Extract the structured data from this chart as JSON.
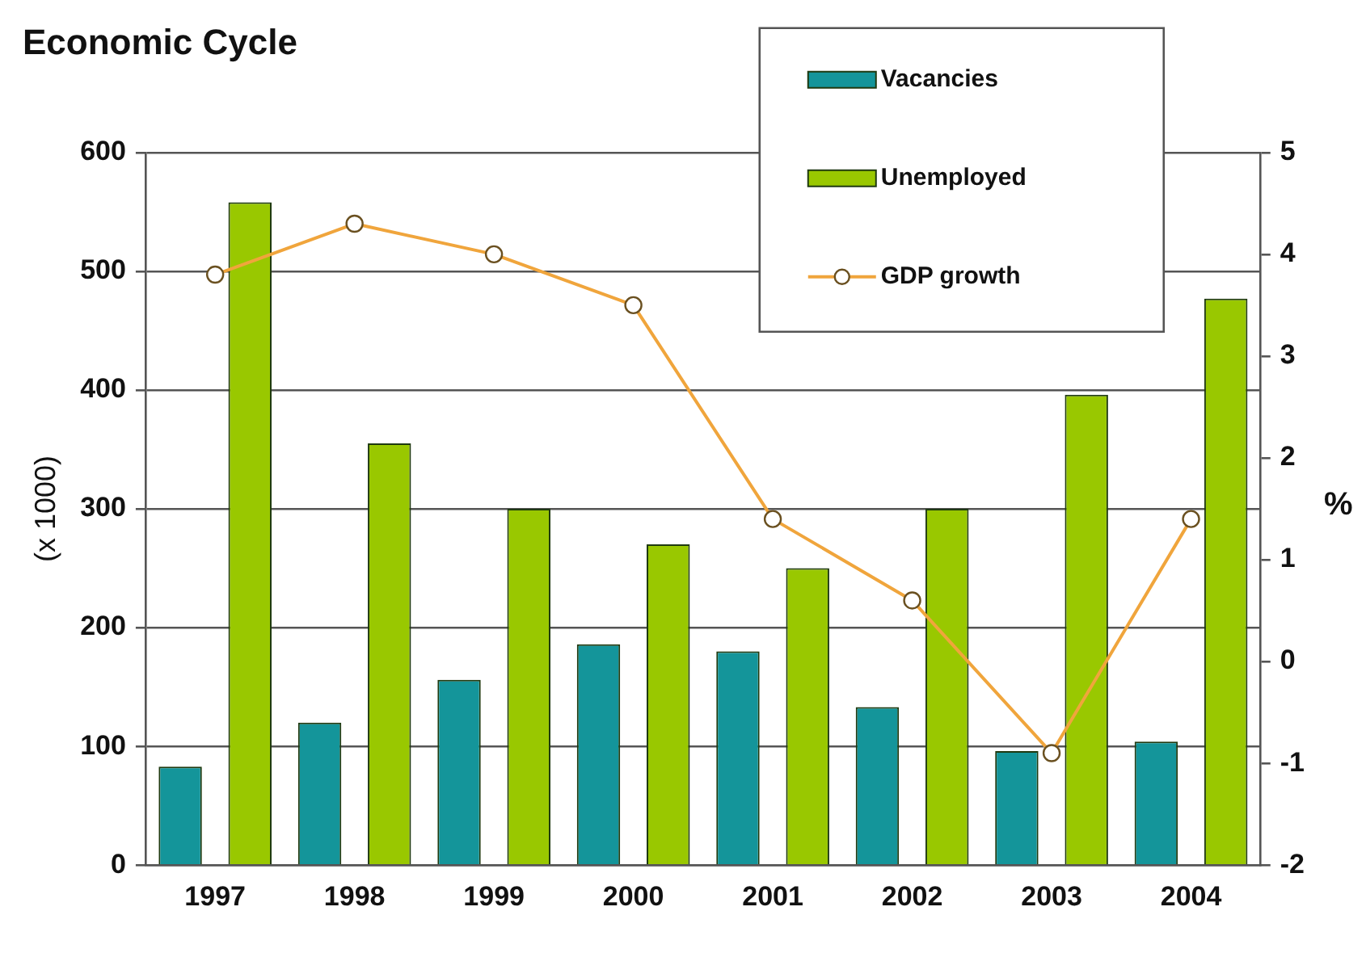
{
  "chart_data": {
    "type": "bar",
    "title": "Economic Cycle",
    "ylabel": "(x 1000)",
    "y2label": "%",
    "categories": [
      "1997",
      "1998",
      "1999",
      "2000",
      "2001",
      "2002",
      "2003",
      "2004"
    ],
    "series": [
      {
        "name": "Vacancies",
        "color": "#14959a",
        "values": [
          83,
          120,
          156,
          186,
          180,
          133,
          96,
          104
        ]
      },
      {
        "name": "Unemployed",
        "color": "#99c800",
        "values": [
          558,
          355,
          300,
          270,
          250,
          300,
          396,
          477
        ]
      },
      {
        "name": "GDP growth",
        "type": "line",
        "axis": "y2",
        "color": "#f0a53c",
        "values": [
          3.8,
          4.3,
          4.0,
          3.5,
          1.4,
          0.6,
          -0.9,
          1.4
        ]
      }
    ],
    "ylim": [
      0,
      600
    ],
    "yticks": [
      0,
      100,
      200,
      300,
      400,
      500,
      600
    ],
    "y2lim": [
      -2,
      5
    ],
    "y2ticks": [
      -2,
      -1,
      0,
      1,
      2,
      3,
      4,
      5
    ],
    "grid": "y",
    "legend": "top right",
    "marker": "circle"
  }
}
